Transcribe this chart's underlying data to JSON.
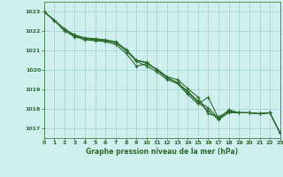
{
  "title": "Graphe pression niveau de la mer (hPa)",
  "bg_color": "#cff0ee",
  "grid_color": "#a8d8d4",
  "line_color": "#2d6b2d",
  "xlim": [
    0,
    23
  ],
  "ylim": [
    1016.5,
    1023.5
  ],
  "yticks": [
    1017,
    1018,
    1019,
    1020,
    1021,
    1022,
    1023
  ],
  "xticks": [
    0,
    1,
    2,
    3,
    4,
    5,
    6,
    7,
    8,
    9,
    10,
    11,
    12,
    13,
    14,
    15,
    16,
    17,
    18,
    19,
    20,
    21,
    22,
    23
  ],
  "series": [
    [
      1023.0,
      1022.55,
      1022.0,
      1021.7,
      1021.55,
      1021.5,
      1021.45,
      1021.3,
      1020.85,
      1020.2,
      1020.3,
      1020.05,
      1019.65,
      1019.5,
      1019.05,
      1018.6,
      1017.75,
      1017.6,
      1017.85,
      1017.8,
      1017.8,
      1017.75,
      1017.8,
      1016.75
    ],
    [
      1023.0,
      1022.55,
      1022.1,
      1021.75,
      1021.6,
      1021.55,
      1021.5,
      1021.4,
      1021.0,
      1020.45,
      1020.2,
      1019.9,
      1019.5,
      1019.3,
      1018.75,
      1018.25,
      1018.6,
      1017.5,
      1017.95,
      1017.8,
      1017.8,
      1017.75,
      1017.8,
      1016.75
    ],
    [
      1023.0,
      1022.55,
      1022.1,
      1021.75,
      1021.6,
      1021.6,
      1021.5,
      1021.4,
      1021.0,
      1020.5,
      1020.4,
      1020.0,
      1019.6,
      1019.35,
      1018.9,
      1018.4,
      1018.05,
      1017.5,
      1017.9,
      1017.8,
      1017.8,
      1017.75,
      1017.8,
      1016.75
    ],
    [
      1023.0,
      1022.55,
      1022.1,
      1021.8,
      1021.65,
      1021.6,
      1021.55,
      1021.45,
      1021.05,
      1020.5,
      1020.35,
      1020.0,
      1019.6,
      1019.35,
      1018.85,
      1018.35,
      1017.9,
      1017.45,
      1017.8,
      1017.8,
      1017.8,
      1017.75,
      1017.8,
      1016.75
    ]
  ],
  "markers": [
    "+",
    "+",
    "+",
    "+"
  ],
  "marker_sizes": [
    3,
    3,
    3,
    3
  ],
  "linewidths": [
    0.8,
    0.8,
    0.8,
    0.8
  ]
}
